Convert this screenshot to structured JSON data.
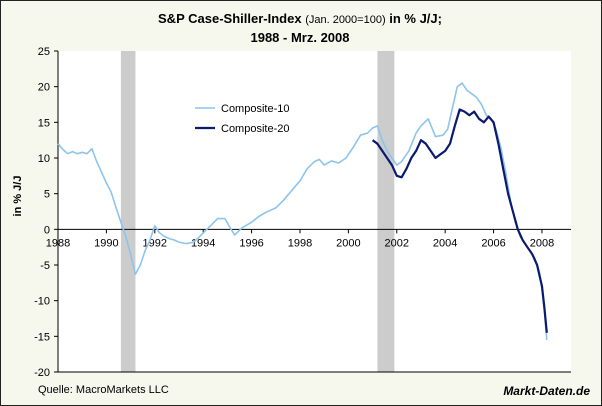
{
  "title": {
    "main": "S&P Case-Shiller-Index",
    "note": "(Jan. 2000=100)",
    "suffix": "in % J/J;",
    "line2": "1988 - Mrz. 2008"
  },
  "source": "Quelle: MacroMarkets LLC",
  "brand": "Markt-Daten.de",
  "chart_data": {
    "type": "line",
    "ylabel": "in % J/J",
    "xlim": [
      1988,
      2009.2
    ],
    "ylim": [
      -20,
      25
    ],
    "yticks": [
      25,
      20,
      15,
      10,
      5,
      0,
      -5,
      -10,
      -15,
      -20
    ],
    "xticks": [
      1988,
      1990,
      1992,
      1994,
      1996,
      1998,
      2000,
      2002,
      2004,
      2006,
      2008
    ],
    "recessions": [
      [
        1990.6,
        1991.2
      ],
      [
        2001.2,
        2001.9
      ]
    ],
    "legend_position": "upper-left-inside",
    "series": [
      {
        "name": "Composite-10",
        "color": "#8ec4ec",
        "points": [
          [
            1988.0,
            12.0
          ],
          [
            1988.2,
            11.2
          ],
          [
            1988.4,
            10.6
          ],
          [
            1988.6,
            10.9
          ],
          [
            1988.8,
            10.6
          ],
          [
            1989.0,
            10.8
          ],
          [
            1989.2,
            10.6
          ],
          [
            1989.4,
            11.3
          ],
          [
            1989.6,
            9.5
          ],
          [
            1989.8,
            8.0
          ],
          [
            1990.0,
            6.5
          ],
          [
            1990.2,
            5.2
          ],
          [
            1990.4,
            3.0
          ],
          [
            1990.6,
            1.0
          ],
          [
            1990.8,
            -1.0
          ],
          [
            1991.0,
            -3.5
          ],
          [
            1991.2,
            -6.3
          ],
          [
            1991.4,
            -5.0
          ],
          [
            1991.6,
            -3.0
          ],
          [
            1991.8,
            -1.5
          ],
          [
            1992.0,
            0.5
          ],
          [
            1992.2,
            -0.5
          ],
          [
            1992.4,
            -1.0
          ],
          [
            1992.6,
            -1.3
          ],
          [
            1992.8,
            -1.5
          ],
          [
            1993.0,
            -1.8
          ],
          [
            1993.3,
            -2.0
          ],
          [
            1993.6,
            -1.8
          ],
          [
            1993.8,
            -1.2
          ],
          [
            1994.0,
            -0.5
          ],
          [
            1994.3,
            0.5
          ],
          [
            1994.6,
            1.5
          ],
          [
            1994.9,
            1.5
          ],
          [
            1995.1,
            0.3
          ],
          [
            1995.3,
            -0.8
          ],
          [
            1995.6,
            0.2
          ],
          [
            1996.0,
            1.0
          ],
          [
            1996.3,
            1.8
          ],
          [
            1996.6,
            2.4
          ],
          [
            1997.0,
            3.0
          ],
          [
            1997.3,
            4.0
          ],
          [
            1997.6,
            5.2
          ],
          [
            1998.0,
            6.8
          ],
          [
            1998.3,
            8.5
          ],
          [
            1998.6,
            9.5
          ],
          [
            1998.8,
            9.8
          ],
          [
            1999.0,
            9.0
          ],
          [
            1999.3,
            9.6
          ],
          [
            1999.6,
            9.3
          ],
          [
            1999.9,
            10.0
          ],
          [
            2000.2,
            11.5
          ],
          [
            2000.5,
            13.2
          ],
          [
            2000.8,
            13.5
          ],
          [
            2001.0,
            14.2
          ],
          [
            2001.2,
            14.5
          ],
          [
            2001.4,
            12.5
          ],
          [
            2001.6,
            11.0
          ],
          [
            2001.8,
            10.0
          ],
          [
            2002.0,
            9.0
          ],
          [
            2002.2,
            9.5
          ],
          [
            2002.5,
            11.0
          ],
          [
            2002.8,
            13.5
          ],
          [
            2003.0,
            14.5
          ],
          [
            2003.3,
            15.5
          ],
          [
            2003.6,
            13.0
          ],
          [
            2003.9,
            13.2
          ],
          [
            2004.1,
            14.0
          ],
          [
            2004.3,
            17.0
          ],
          [
            2004.5,
            20.0
          ],
          [
            2004.7,
            20.5
          ],
          [
            2004.9,
            19.5
          ],
          [
            2005.1,
            19.0
          ],
          [
            2005.3,
            18.5
          ],
          [
            2005.5,
            17.5
          ],
          [
            2005.7,
            16.0
          ],
          [
            2005.9,
            15.5
          ],
          [
            2006.1,
            14.0
          ],
          [
            2006.3,
            11.5
          ],
          [
            2006.5,
            8.0
          ],
          [
            2006.7,
            4.0
          ],
          [
            2006.9,
            1.0
          ],
          [
            2007.1,
            -1.0
          ],
          [
            2007.3,
            -2.0
          ],
          [
            2007.5,
            -3.0
          ],
          [
            2007.7,
            -4.0
          ],
          [
            2007.9,
            -6.0
          ],
          [
            2008.0,
            -8.5
          ],
          [
            2008.1,
            -11.5
          ],
          [
            2008.2,
            -15.5
          ]
        ]
      },
      {
        "name": "Composite-20",
        "color": "#0a1a6e",
        "points": [
          [
            2001.0,
            12.5
          ],
          [
            2001.2,
            12.0
          ],
          [
            2001.4,
            11.0
          ],
          [
            2001.6,
            10.0
          ],
          [
            2001.8,
            9.0
          ],
          [
            2002.0,
            7.5
          ],
          [
            2002.2,
            7.3
          ],
          [
            2002.4,
            8.5
          ],
          [
            2002.6,
            10.0
          ],
          [
            2002.8,
            11.0
          ],
          [
            2003.0,
            12.5
          ],
          [
            2003.2,
            12.0
          ],
          [
            2003.4,
            11.0
          ],
          [
            2003.6,
            10.0
          ],
          [
            2003.8,
            10.5
          ],
          [
            2004.0,
            11.0
          ],
          [
            2004.2,
            12.0
          ],
          [
            2004.4,
            14.5
          ],
          [
            2004.6,
            16.8
          ],
          [
            2004.8,
            16.5
          ],
          [
            2005.0,
            16.0
          ],
          [
            2005.2,
            16.5
          ],
          [
            2005.4,
            15.5
          ],
          [
            2005.6,
            15.0
          ],
          [
            2005.8,
            15.8
          ],
          [
            2006.0,
            15.0
          ],
          [
            2006.2,
            12.0
          ],
          [
            2006.4,
            8.5
          ],
          [
            2006.6,
            5.0
          ],
          [
            2006.8,
            2.5
          ],
          [
            2007.0,
            0.0
          ],
          [
            2007.2,
            -1.5
          ],
          [
            2007.4,
            -2.5
          ],
          [
            2007.6,
            -3.5
          ],
          [
            2007.8,
            -5.0
          ],
          [
            2008.0,
            -8.0
          ],
          [
            2008.1,
            -11.0
          ],
          [
            2008.2,
            -14.5
          ]
        ]
      }
    ]
  }
}
